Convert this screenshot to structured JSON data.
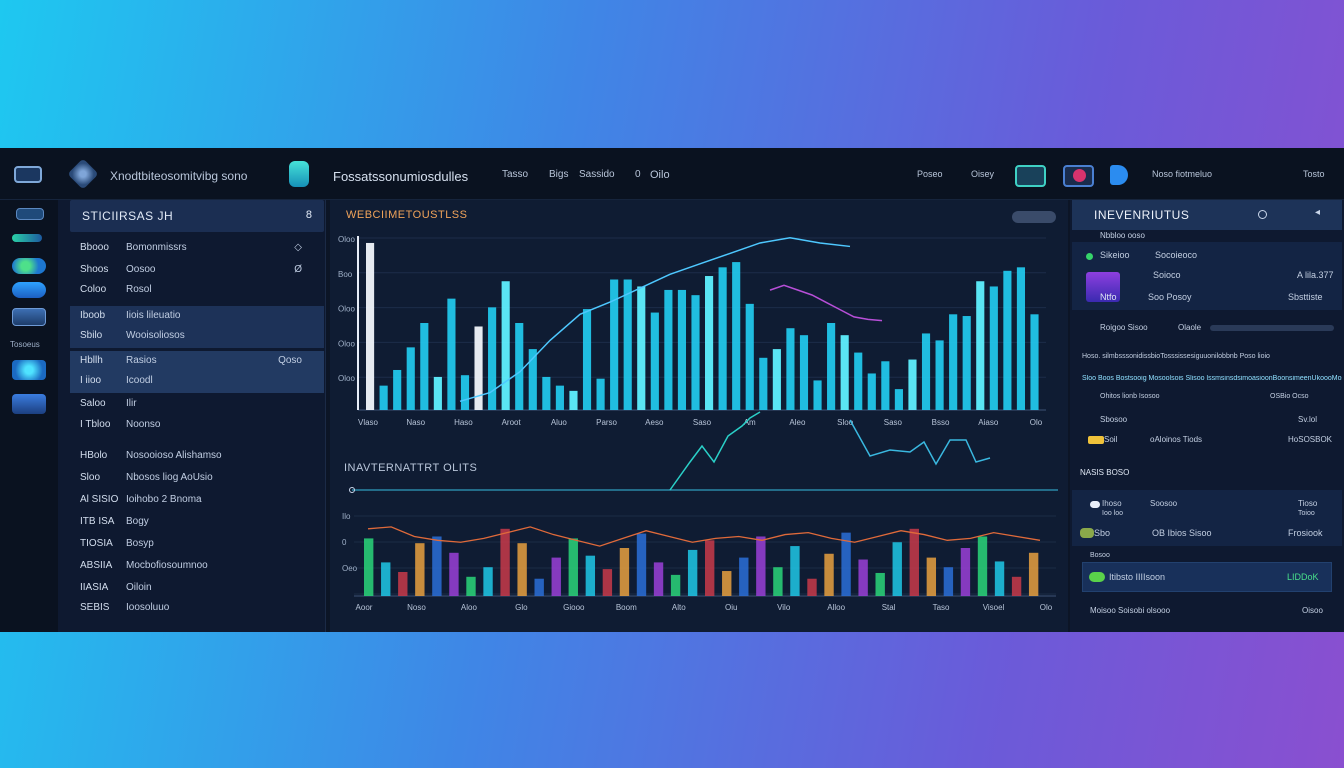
{
  "topbar": {
    "brand": "Xnodtbiteosomitvibg sono",
    "section": "Fossatssonumiosdulles",
    "nav": [
      "Tasso",
      "Bigs",
      "Sassido",
      "0",
      "Oilo"
    ],
    "right_left": "Poseo",
    "right_mid": "Oisey",
    "user_label": "Noso fiotmeluo",
    "user_action": "Tosto"
  },
  "rail": {
    "label": "Tosoeus"
  },
  "sidebar": {
    "title": "STICIIRSAS JH",
    "badge": "8",
    "rows": [
      {
        "a": "Bbooo",
        "b": "Bomonmissrs",
        "c": "◇"
      },
      {
        "a": "Shoos",
        "b": "Oosoo",
        "c": "Ø"
      },
      {
        "a": "Coloo",
        "b": "Rosol",
        "c": ""
      },
      {
        "a": "Iboob",
        "b": "Iiois lileuatio",
        "c": ""
      },
      {
        "a": "Sbilo",
        "b": "Wooisoliosos",
        "c": ""
      },
      {
        "a": "Hbllh",
        "b": "Rasios",
        "c": "Qoso"
      },
      {
        "a": "I iioo",
        "b": "Icoodl",
        "c": ""
      },
      {
        "a": "Saloo",
        "b": "Ilir",
        "c": ""
      },
      {
        "a": "I Tbloo",
        "b": "Noonso",
        "c": ""
      },
      {
        "a": "HBolo",
        "b": "Nosooioso Alishamso",
        "c": ""
      },
      {
        "a": "Sloo",
        "b": "Nbosos liog AoUsio",
        "c": ""
      },
      {
        "a": "Al SISIO",
        "b": "Ioihobo 2 Bnoma",
        "c": ""
      },
      {
        "a": "ITB ISA",
        "b": "Bogy",
        "c": ""
      },
      {
        "a": "TIOSIA",
        "b": "Bosyp",
        "c": ""
      },
      {
        "a": "ABSIIA",
        "b": "Mocbofiosoumnoo",
        "c": ""
      },
      {
        "a": "IIASIA",
        "b": "Oiloin",
        "c": ""
      },
      {
        "a": "SEBIS",
        "b": "Ioosoluuo",
        "c": ""
      }
    ]
  },
  "main": {
    "chart1_title": "WEBCIIMETOUSTLSS",
    "chart2_title": "INAVTERNATTRT OLITS"
  },
  "chart_data": [
    {
      "type": "bar",
      "title": "WEBCIIMETOUSTLSS",
      "ytick_labels": [
        "Oloo",
        "Boo",
        "Oloo",
        "Oloo",
        "Oloo"
      ],
      "xtick_labels": [
        "Vlaso",
        "Naso",
        "Haso",
        "Aroot",
        "Aluo",
        "Parso",
        "Aeso",
        "Saso",
        "Am",
        "Aleo",
        "Sloo",
        "Saso",
        "Bsso",
        "Aiaso",
        "Olo"
      ],
      "values": [
        96,
        14,
        23,
        36,
        50,
        19,
        64,
        20,
        48,
        59,
        74,
        50,
        35,
        19,
        14,
        11,
        58,
        18,
        75,
        75,
        71,
        56,
        69,
        69,
        66,
        77,
        82,
        85,
        61,
        30,
        35,
        47,
        43,
        17,
        50,
        43,
        33,
        21,
        28,
        12,
        29,
        44,
        40,
        55,
        54,
        74,
        71,
        80,
        82,
        55
      ],
      "overlay_lines": [
        {
          "name": "",
          "color": "#4ec8ff",
          "points": [
            5,
            10,
            22,
            40,
            55,
            62,
            70,
            78,
            84,
            90,
            96,
            99,
            96,
            94
          ]
        },
        {
          "name": "",
          "color": "#b84fd8",
          "points": [
            82,
            86,
            82,
            78,
            72,
            66,
            60,
            58,
            57
          ]
        }
      ]
    },
    {
      "type": "bar",
      "title": "INAVTERNATTRT OLITS",
      "ytick_labels": [
        "Ilo",
        "0",
        "Oeo",
        ""
      ],
      "xtick_labels": [
        "Aoor",
        "Noso",
        "Aloo",
        "Glo",
        "Giooo",
        "Boom",
        "Alto",
        "Oiu",
        "Vilo",
        "Alloo",
        "Stal",
        "Taso",
        "Visoel",
        "Olo"
      ],
      "series": [
        {
          "name": "",
          "values": [
            60,
            35,
            25,
            55,
            62,
            45,
            20,
            30,
            70,
            55,
            18,
            40,
            60,
            42,
            28,
            50,
            65,
            35,
            22,
            48,
            58,
            26,
            40,
            62,
            30,
            52,
            18,
            44,
            66,
            38,
            24,
            56,
            70,
            40,
            30,
            50,
            62,
            36,
            20,
            45
          ]
        },
        {
          "name": "",
          "values": [
            70,
            72,
            62,
            58,
            56,
            60,
            66,
            72,
            64,
            58,
            52,
            60,
            68,
            62,
            56,
            60,
            62,
            58,
            64,
            66,
            60,
            56,
            62,
            68,
            64,
            58,
            60,
            66,
            62,
            58
          ]
        }
      ]
    }
  ],
  "right": {
    "title": "INEVENRIUTUS",
    "sub": "Nbbloo ooso",
    "r1_a": "Sikeioo",
    "r1_b": "Socoieoco",
    "r1_c": "",
    "r2_a": "",
    "r2_b": "Soioco",
    "r2_c": "A lila.377",
    "r3_a": "Ntfo",
    "r3_b": "Soo Posoy",
    "r3_c": "Sbsttiste",
    "tabs_a": "Roigoo Sisoo",
    "tabs_b": "Olaole",
    "l1": "Hoso. silmbsssonidissbioTosssissesiguuonilobbnb Poso lioio",
    "l2": "Sloo Boos Bostsooig Mosoolsois Slisoo lssmsinsdsimoasioonBoonsimeenUkoooMoso",
    "l3_a": "Ohitos lionb Isosoo",
    "l3_b": "OSBio Ocso",
    "l4_a": "Sbosoo",
    "l4_c": "Sv.lol",
    "l5_a": "Soil",
    "l5_b": "oAloinos Tiods",
    "l5_c": "HoSOSBOK",
    "section2": "NASIS BOSO",
    "s1_a": "Ihoso",
    "s1_b": "Soosoo",
    "s1_c": "Tioso",
    "s1_d": "Ioo loo",
    "s1_e": "Toioo",
    "s2_a": "Sbo",
    "s2_b": "OB Ibios Sisoo",
    "s2_c": "Frosiook",
    "s3_a": "Bosoo",
    "s4_a": "Itibsto IIIIsoon",
    "s4_c": "LIDDoK",
    "foot_a": "Moisoo Soisobi olsooo",
    "foot_b": "Oisoo"
  },
  "colors": {
    "accent": "#20d0ff",
    "bar": "#21c8ea",
    "title_orange": "#f0a35a",
    "panel": "#0f1c33"
  }
}
